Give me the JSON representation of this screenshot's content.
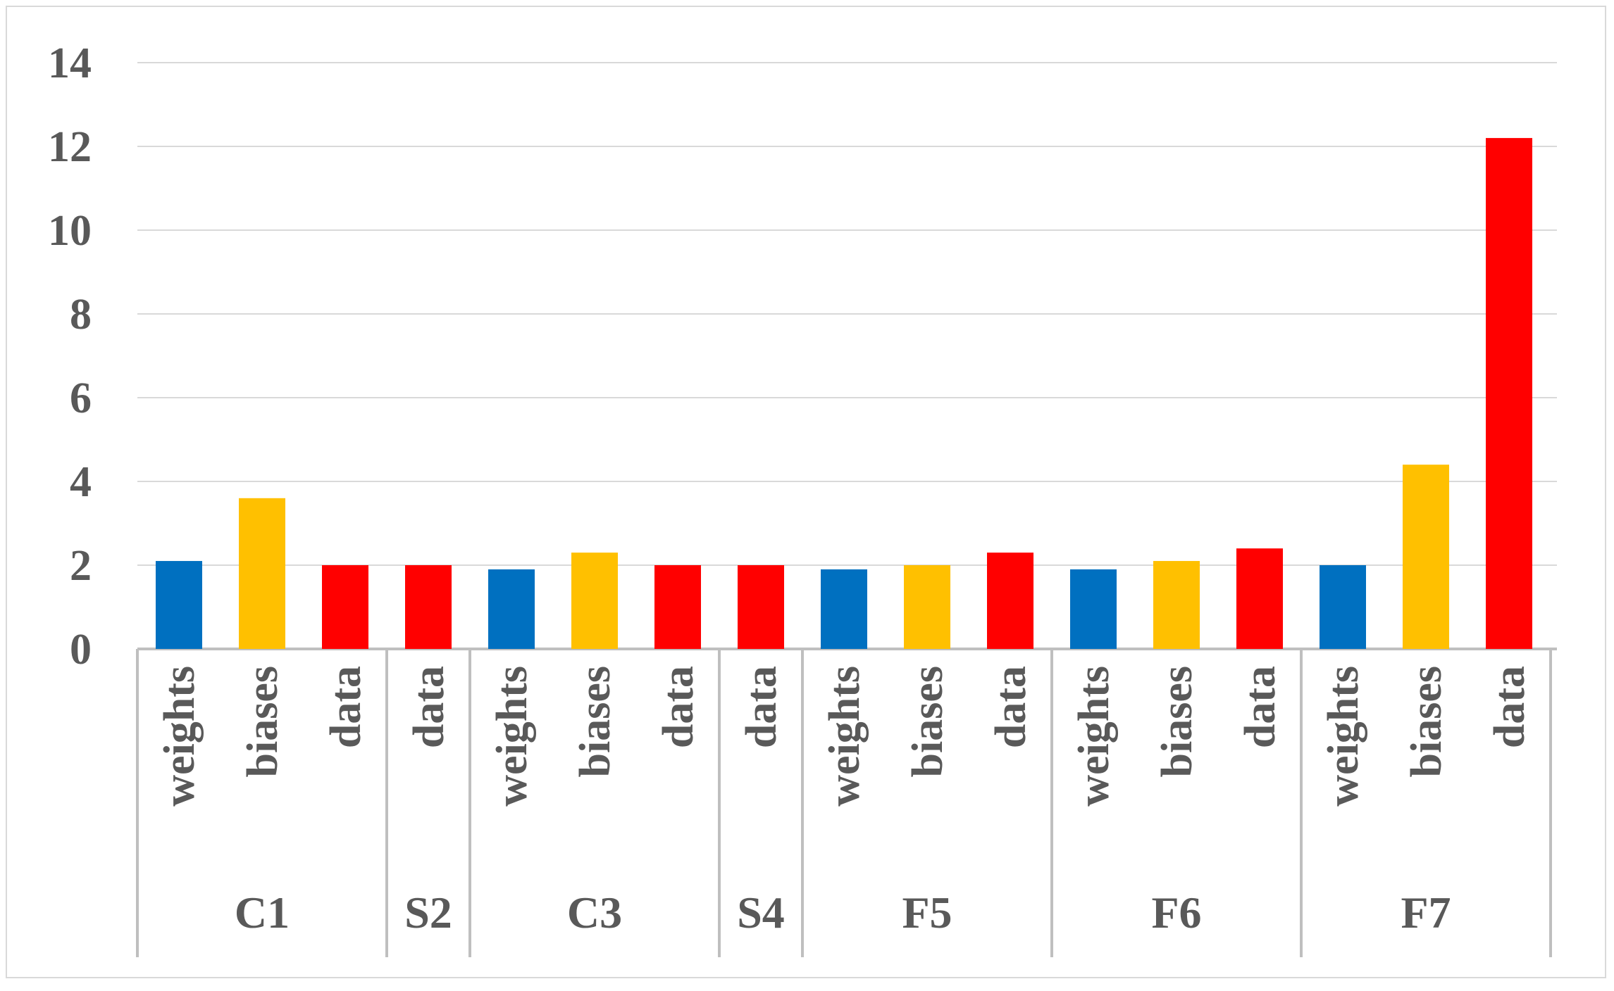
{
  "chart_data": {
    "type": "bar",
    "title": "",
    "xlabel": "",
    "ylabel": "",
    "ylim": [
      0,
      14
    ],
    "yticks": [
      "0",
      "2",
      "4",
      "6",
      "8",
      "10",
      "12",
      "14"
    ],
    "grid": true,
    "legend": "none",
    "colors": {
      "weights": "#0070c0",
      "biases": "#ffc000",
      "data": "#ff0000"
    },
    "groups": [
      {
        "name": "C1",
        "bars": [
          {
            "label": "weights",
            "value": 2.1
          },
          {
            "label": "biases",
            "value": 3.6
          },
          {
            "label": "data",
            "value": 2.0
          }
        ]
      },
      {
        "name": "S2",
        "bars": [
          {
            "label": "data",
            "value": 2.0
          }
        ]
      },
      {
        "name": "C3",
        "bars": [
          {
            "label": "weights",
            "value": 1.9
          },
          {
            "label": "biases",
            "value": 2.3
          },
          {
            "label": "data",
            "value": 2.0
          }
        ]
      },
      {
        "name": "S4",
        "bars": [
          {
            "label": "data",
            "value": 2.0
          }
        ]
      },
      {
        "name": "F5",
        "bars": [
          {
            "label": "weights",
            "value": 1.9
          },
          {
            "label": "biases",
            "value": 2.0
          },
          {
            "label": "data",
            "value": 2.3
          }
        ]
      },
      {
        "name": "F6",
        "bars": [
          {
            "label": "weights",
            "value": 1.9
          },
          {
            "label": "biases",
            "value": 2.1
          },
          {
            "label": "data",
            "value": 2.4
          }
        ]
      },
      {
        "name": "F7",
        "bars": [
          {
            "label": "weights",
            "value": 2.0
          },
          {
            "label": "biases",
            "value": 4.4
          },
          {
            "label": "data",
            "value": 12.2
          }
        ]
      }
    ]
  }
}
